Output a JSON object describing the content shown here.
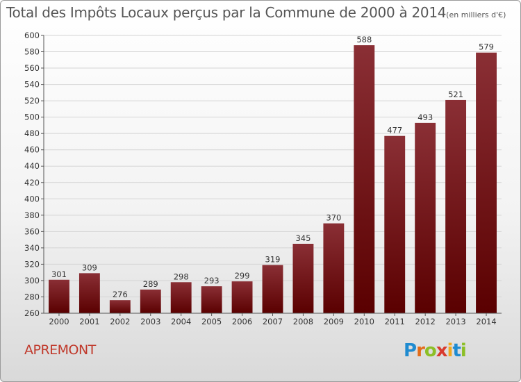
{
  "header": {
    "title": "Total des Impôts Locaux perçus par la Commune de 2000 à 2014",
    "subtitle": "(en milliers d'€)"
  },
  "commune": "APREMONT",
  "logo": {
    "letters": [
      "P",
      "r",
      "o",
      "x",
      "i",
      "t",
      "i"
    ],
    "colors": [
      "#1f8bd0",
      "#e36c1a",
      "#8cbf26",
      "#d83a2e",
      "#f2a81d",
      "#1f8bd0",
      "#8cbf26"
    ]
  },
  "chart_data": {
    "type": "bar",
    "title": "Total des Impôts Locaux perçus par la Commune de 2000 à 2014",
    "subtitle": "(en milliers d'€)",
    "categories": [
      "2000",
      "2001",
      "2002",
      "2003",
      "2004",
      "2005",
      "2006",
      "2007",
      "2008",
      "2009",
      "2010",
      "2011",
      "2012",
      "2013",
      "2014"
    ],
    "values": [
      301,
      309,
      276,
      289,
      298,
      293,
      299,
      319,
      345,
      370,
      588,
      477,
      493,
      521,
      579
    ],
    "ylim": [
      260,
      600
    ],
    "yticks": [
      260,
      280,
      300,
      320,
      340,
      360,
      380,
      400,
      420,
      440,
      460,
      480,
      500,
      520,
      540,
      560,
      580,
      600
    ],
    "grid": true,
    "bar_color_top": "#8a2f35",
    "bar_color_bottom": "#5a0000",
    "xlabel": "",
    "ylabel": ""
  }
}
